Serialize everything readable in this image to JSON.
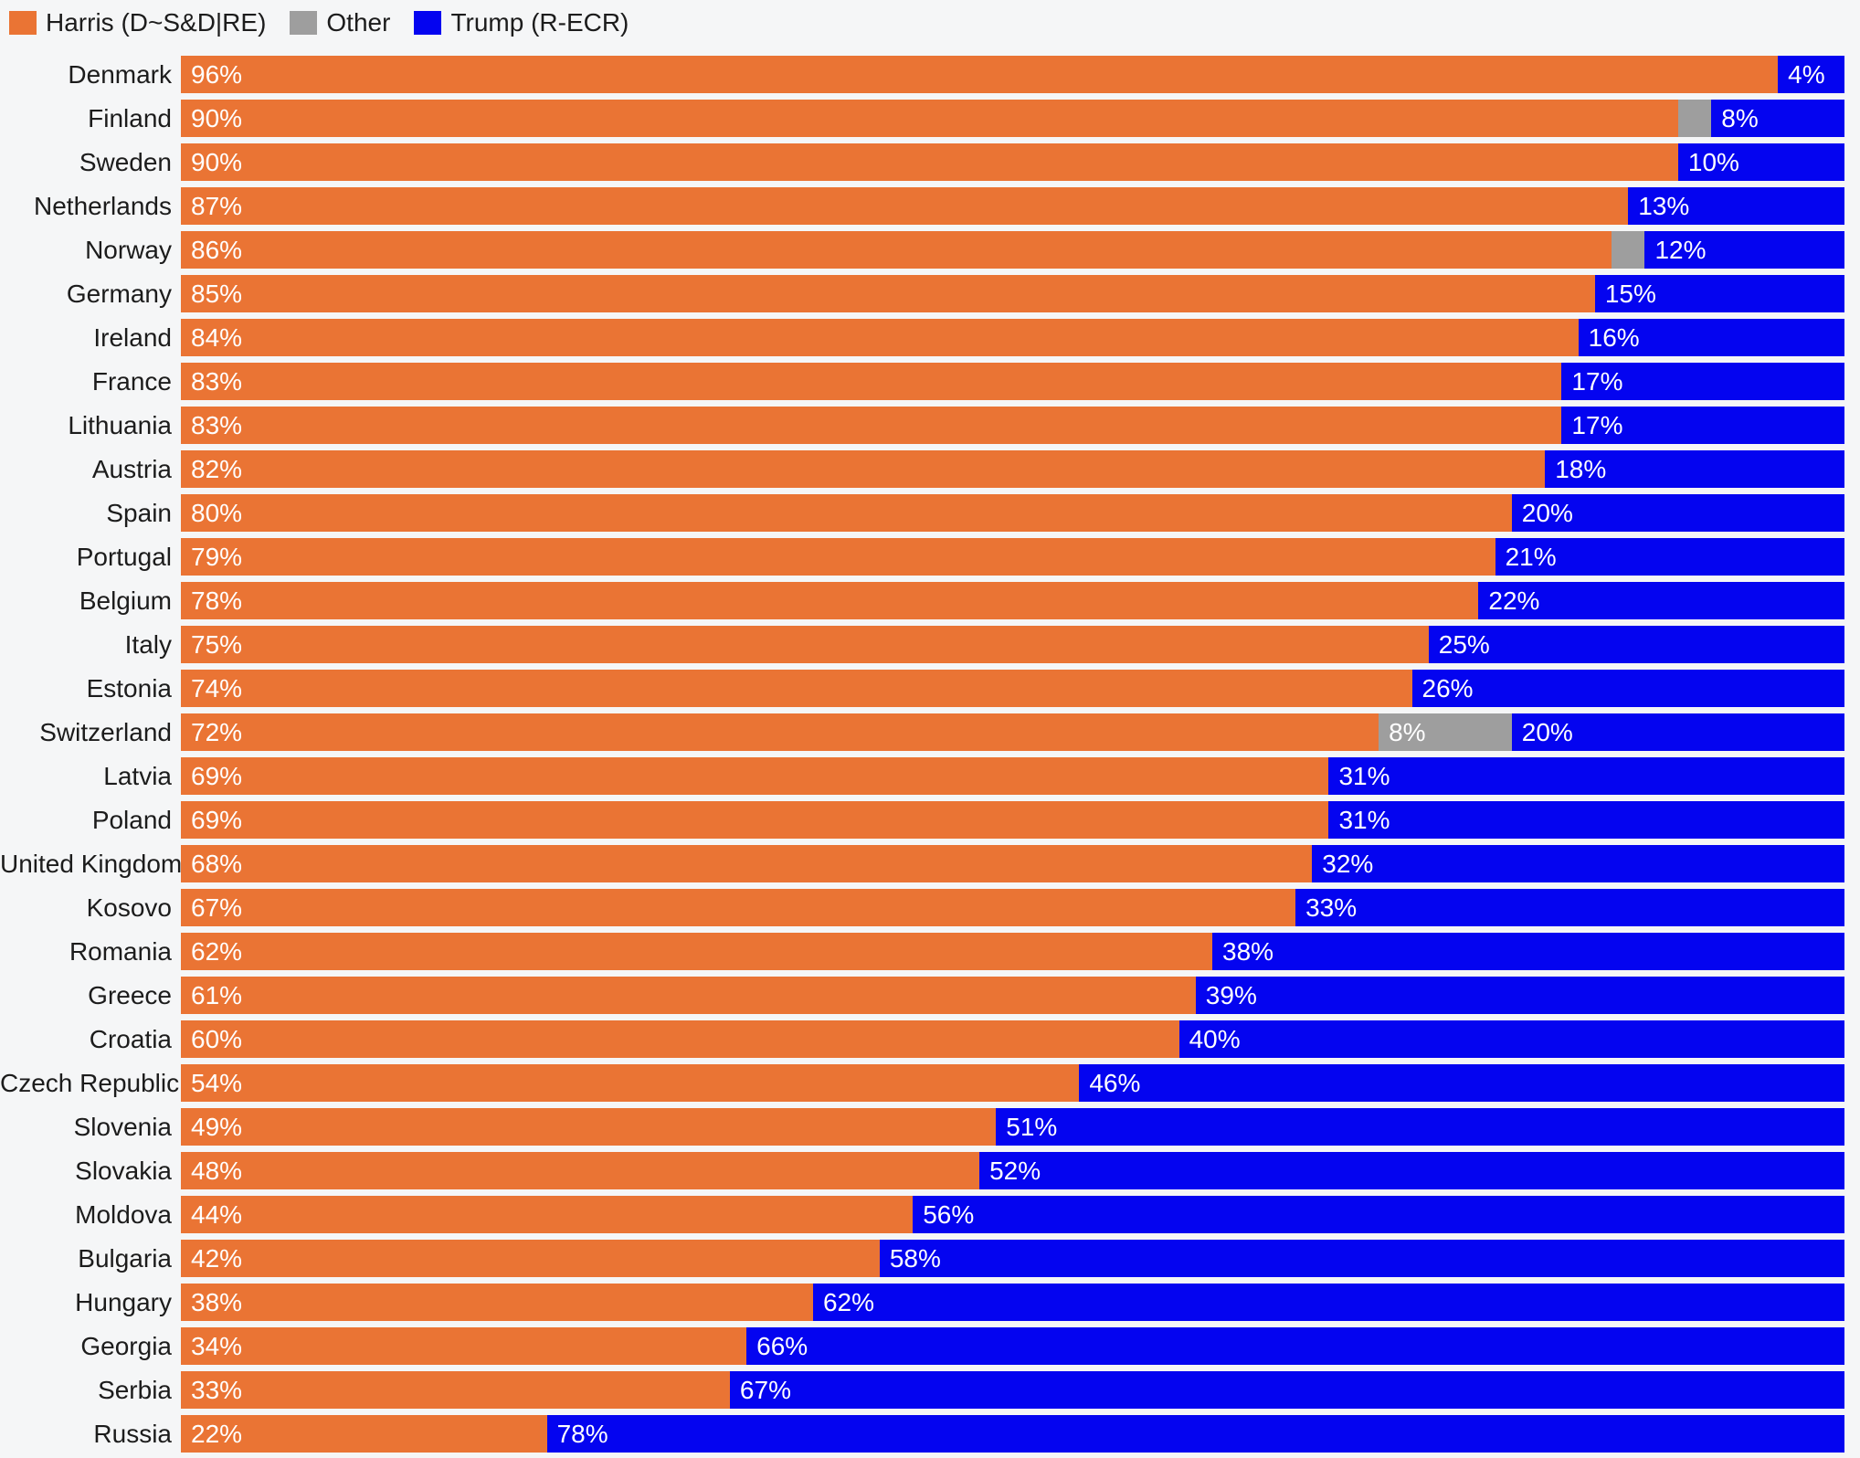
{
  "colors": {
    "harris": "#EA7434",
    "other": "#9E9E9E",
    "trump": "#0404F0",
    "background": "#F5F6F7",
    "label_text": "#1C1C1C",
    "value_text": "#FFFFFF"
  },
  "legend": [
    {
      "label": "Harris (D~S&D|RE)",
      "color": "#EA7434",
      "series_key": "harris"
    },
    {
      "label": "Other",
      "color": "#9E9E9E",
      "series_key": "other"
    },
    {
      "label": "Trump (R-ECR)",
      "color": "#0404F0",
      "series_key": "trump"
    }
  ],
  "chart_data": {
    "type": "bar",
    "orientation": "horizontal",
    "stacked": true,
    "value_unit": "%",
    "xlim": [
      0,
      100
    ],
    "grid": false,
    "legend_position": "top-left",
    "series_names": [
      "Harris (D~S&D|RE)",
      "Other",
      "Trump (R-ECR)"
    ],
    "value_label_min_for_other": 5,
    "rows": [
      {
        "country": "Denmark",
        "harris": 96,
        "other": 0,
        "trump": 4
      },
      {
        "country": "Finland",
        "harris": 90,
        "other": 2,
        "trump": 8
      },
      {
        "country": "Sweden",
        "harris": 90,
        "other": 0,
        "trump": 10
      },
      {
        "country": "Netherlands",
        "harris": 87,
        "other": 0,
        "trump": 13
      },
      {
        "country": "Norway",
        "harris": 86,
        "other": 2,
        "trump": 12
      },
      {
        "country": "Germany",
        "harris": 85,
        "other": 0,
        "trump": 15
      },
      {
        "country": "Ireland",
        "harris": 84,
        "other": 0,
        "trump": 16
      },
      {
        "country": "France",
        "harris": 83,
        "other": 0,
        "trump": 17
      },
      {
        "country": "Lithuania",
        "harris": 83,
        "other": 0,
        "trump": 17
      },
      {
        "country": "Austria",
        "harris": 82,
        "other": 0,
        "trump": 18
      },
      {
        "country": "Spain",
        "harris": 80,
        "other": 0,
        "trump": 20
      },
      {
        "country": "Portugal",
        "harris": 79,
        "other": 0,
        "trump": 21
      },
      {
        "country": "Belgium",
        "harris": 78,
        "other": 0,
        "trump": 22
      },
      {
        "country": "Italy",
        "harris": 75,
        "other": 0,
        "trump": 25
      },
      {
        "country": "Estonia",
        "harris": 74,
        "other": 0,
        "trump": 26
      },
      {
        "country": "Switzerland",
        "harris": 72,
        "other": 8,
        "trump": 20
      },
      {
        "country": "Latvia",
        "harris": 69,
        "other": 0,
        "trump": 31
      },
      {
        "country": "Poland",
        "harris": 69,
        "other": 0,
        "trump": 31
      },
      {
        "country": "United Kingdom",
        "harris": 68,
        "other": 0,
        "trump": 32
      },
      {
        "country": "Kosovo",
        "harris": 67,
        "other": 0,
        "trump": 33
      },
      {
        "country": "Romania",
        "harris": 62,
        "other": 0,
        "trump": 38
      },
      {
        "country": "Greece",
        "harris": 61,
        "other": 0,
        "trump": 39
      },
      {
        "country": "Croatia",
        "harris": 60,
        "other": 0,
        "trump": 40
      },
      {
        "country": "Czech Republic",
        "harris": 54,
        "other": 0,
        "trump": 46
      },
      {
        "country": "Slovenia",
        "harris": 49,
        "other": 0,
        "trump": 51
      },
      {
        "country": "Slovakia",
        "harris": 48,
        "other": 0,
        "trump": 52
      },
      {
        "country": "Moldova",
        "harris": 44,
        "other": 0,
        "trump": 56
      },
      {
        "country": "Bulgaria",
        "harris": 42,
        "other": 0,
        "trump": 58
      },
      {
        "country": "Hungary",
        "harris": 38,
        "other": 0,
        "trump": 62
      },
      {
        "country": "Georgia",
        "harris": 34,
        "other": 0,
        "trump": 66
      },
      {
        "country": "Serbia",
        "harris": 33,
        "other": 0,
        "trump": 67
      },
      {
        "country": "Russia",
        "harris": 22,
        "other": 0,
        "trump": 78
      }
    ]
  }
}
